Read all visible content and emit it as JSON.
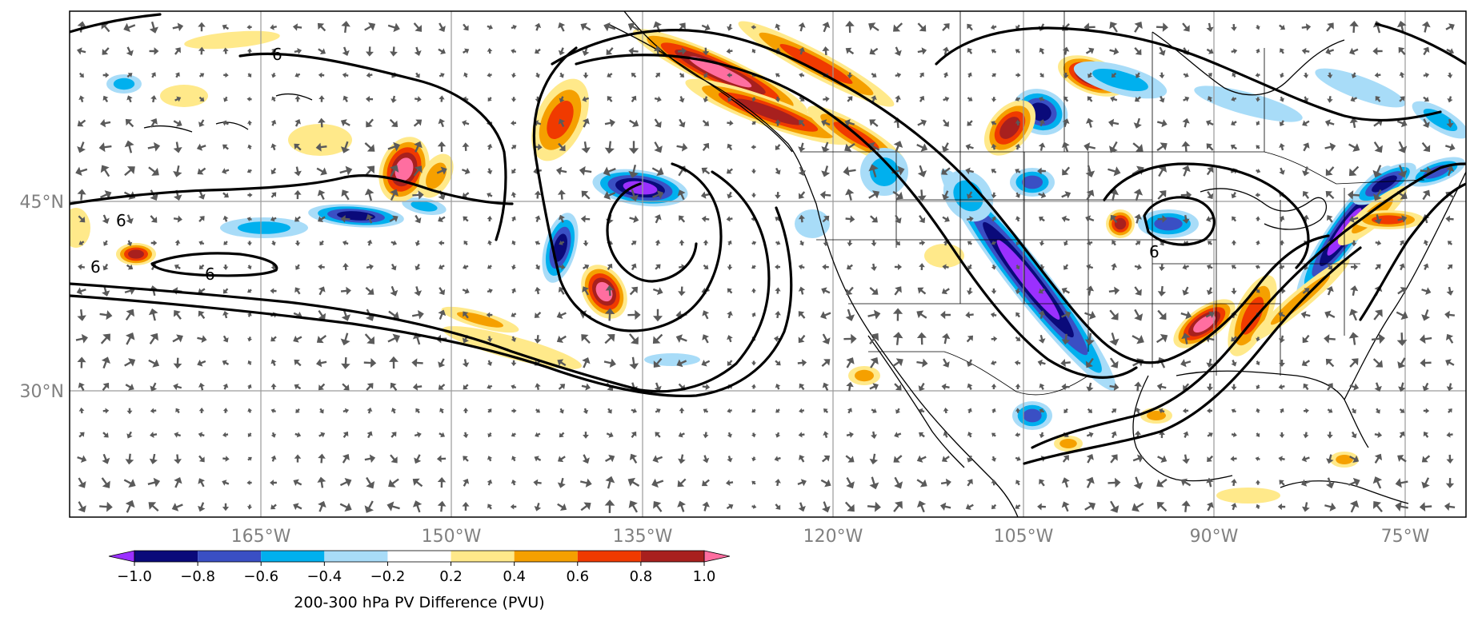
{
  "map": {
    "lat_labels": [
      "45°N",
      "30°N"
    ],
    "lon_labels": [
      "165°W",
      "150°W",
      "135°W",
      "120°W",
      "105°W",
      "90°W",
      "75°W"
    ],
    "contour_label": "6"
  },
  "colorbar": {
    "title": "200-300 hPa PV Difference (PVU)",
    "ticks": [
      "−1.0",
      "−0.8",
      "−0.6",
      "−0.4",
      "−0.2",
      "0.2",
      "0.4",
      "0.6",
      "0.8",
      "1.0"
    ],
    "colors": [
      "#9b30ff",
      "#0a0a7a",
      "#3a4fc4",
      "#00b0ee",
      "#a8dcf8",
      "#ffffff",
      "#ffe98a",
      "#f5a000",
      "#f03a00",
      "#a8201e",
      "#ff6ea0"
    ]
  },
  "style": {
    "neg_colors": [
      "#a8dcf8",
      "#00b0ee",
      "#3a4fc4",
      "#0a0a7a",
      "#9b30ff"
    ],
    "pos_colors": [
      "#ffe98a",
      "#f5a000",
      "#f03a00",
      "#a8201e",
      "#ff6ea0"
    ]
  }
}
